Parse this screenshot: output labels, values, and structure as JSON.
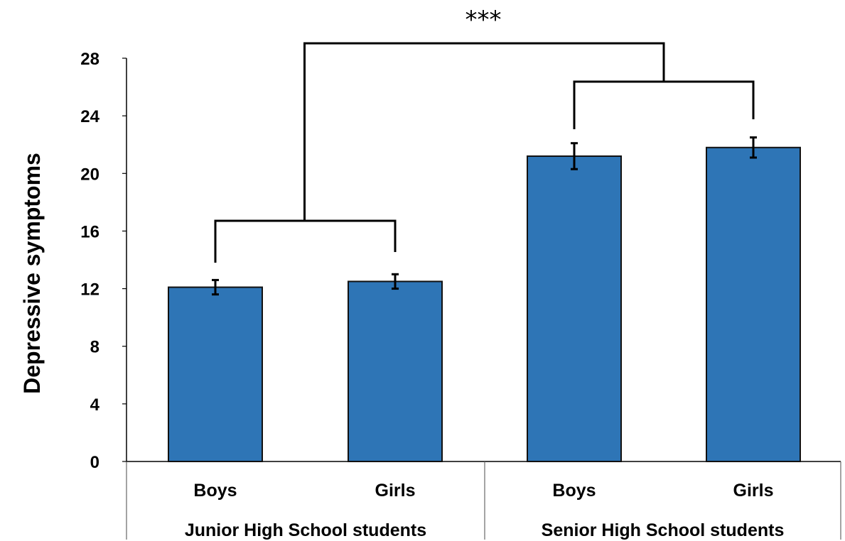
{
  "chart_data": {
    "type": "bar",
    "ylabel": "Depressive symptoms",
    "ylim": [
      0,
      28
    ],
    "yticks": [
      "0",
      "4",
      "8",
      "12",
      "16",
      "20",
      "24",
      "28"
    ],
    "bar_color": "#2E75B6",
    "groups": [
      {
        "label": "Junior High School students",
        "categories": [
          {
            "label": "Boys",
            "value": 12.1,
            "error": 0.5
          },
          {
            "label": "Girls",
            "value": 12.5,
            "error": 0.5
          }
        ]
      },
      {
        "label": "Senior High School students",
        "categories": [
          {
            "label": "Boys",
            "value": 21.2,
            "error": 0.9
          },
          {
            "label": "Girls",
            "value": 21.8,
            "error": 0.7
          }
        ]
      }
    ],
    "significance_label": "***",
    "grid": false,
    "legend": "none"
  }
}
